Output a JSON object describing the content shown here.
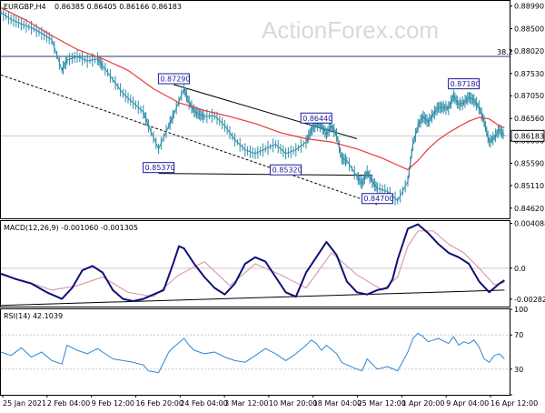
{
  "header": {
    "symbol": "EURGBP,H4",
    "ohlc": "0.86385 0.86405 0.86166 0.86183"
  },
  "watermark": "ActionForex.com",
  "colors": {
    "price": "#2c8ca8",
    "ema": "#e8393b",
    "macd": "#101075",
    "signal": "#d99fb3",
    "rsi": "#2f86d6",
    "trend": "#000000",
    "label": "#1b1b9a",
    "grid": "#c8c8c8"
  },
  "chart_data": [
    {
      "type": "line",
      "panel": "price",
      "title": "EURGBP,H4",
      "ylim": [
        0.844,
        0.891
      ],
      "x_range": [
        0,
        100
      ],
      "y_ticks": [
        "0.88990",
        "0.88500",
        "0.88020",
        "0.87530",
        "0.87050",
        "0.86560",
        "0.86080",
        "0.85590",
        "0.85110",
        "0.84620"
      ],
      "y_tick_values": [
        0.8899,
        0.885,
        0.8802,
        0.8753,
        0.8705,
        0.8656,
        0.8608,
        0.8559,
        0.8511,
        0.8462
      ],
      "current_price": "0.86183",
      "current_price_value": 0.86183,
      "fib_label": "38.2",
      "fib_value": 0.879,
      "series": [
        {
          "name": "price",
          "x": [
            0,
            2,
            4,
            6,
            8,
            10,
            12,
            13,
            15,
            17,
            19,
            20,
            22,
            24,
            26,
            28,
            29,
            31,
            33,
            34,
            36,
            37,
            38,
            39,
            40,
            42,
            44,
            46,
            48,
            50,
            52,
            54,
            56,
            58,
            60,
            61,
            62,
            63,
            64,
            65,
            66,
            67,
            68,
            70,
            71,
            72,
            73,
            74,
            76,
            78,
            80,
            81,
            82,
            83,
            84,
            85,
            86,
            87,
            88,
            89,
            90,
            91,
            92,
            93,
            94,
            95,
            96,
            97,
            98,
            99
          ],
          "values": [
            0.8885,
            0.887,
            0.886,
            0.8852,
            0.884,
            0.8826,
            0.876,
            0.8782,
            0.879,
            0.878,
            0.8785,
            0.877,
            0.874,
            0.871,
            0.869,
            0.867,
            0.864,
            0.859,
            0.864,
            0.8665,
            0.872,
            0.869,
            0.8672,
            0.8665,
            0.866,
            0.8662,
            0.864,
            0.861,
            0.8588,
            0.858,
            0.859,
            0.86,
            0.858,
            0.8588,
            0.8605,
            0.863,
            0.8644,
            0.864,
            0.8622,
            0.864,
            0.862,
            0.857,
            0.8565,
            0.853,
            0.8515,
            0.854,
            0.852,
            0.8505,
            0.8498,
            0.8478,
            0.852,
            0.86,
            0.864,
            0.866,
            0.8648,
            0.8665,
            0.868,
            0.868,
            0.8678,
            0.8705,
            0.8686,
            0.869,
            0.8702,
            0.8695,
            0.868,
            0.865,
            0.8605,
            0.8615,
            0.8632,
            0.8619
          ]
        },
        {
          "name": "ema",
          "x": [
            0,
            5,
            10,
            15,
            20,
            25,
            30,
            35,
            40,
            45,
            50,
            55,
            60,
            65,
            70,
            75,
            78,
            80,
            82,
            84,
            86,
            88,
            90,
            92,
            94,
            96,
            98,
            99
          ],
          "values": [
            0.8895,
            0.8868,
            0.8835,
            0.8805,
            0.8785,
            0.876,
            0.872,
            0.869,
            0.8673,
            0.866,
            0.8645,
            0.8625,
            0.8612,
            0.8605,
            0.859,
            0.857,
            0.8555,
            0.8545,
            0.8565,
            0.859,
            0.861,
            0.8625,
            0.8638,
            0.865,
            0.8658,
            0.8655,
            0.864,
            0.8636
          ]
        }
      ],
      "trendlines": [
        {
          "x": [
            0,
            74
          ],
          "values": [
            0.875,
            0.847
          ]
        },
        {
          "x": [
            34,
            70
          ],
          "values": [
            0.8729,
            0.8612
          ]
        },
        {
          "x": [
            31,
            73
          ],
          "values": [
            0.8537,
            0.8533
          ]
        }
      ],
      "annotations": [
        {
          "text": "0.87290",
          "x": 34,
          "value": 0.8729
        },
        {
          "text": "0.85370",
          "x": 31,
          "value": 0.8537
        },
        {
          "text": "0.85320",
          "x": 56,
          "value": 0.8532
        },
        {
          "text": "0.86440",
          "x": 62,
          "value": 0.8644
        },
        {
          "text": "0.84700",
          "x": 74,
          "value": 0.847
        },
        {
          "text": "0.87180",
          "x": 91,
          "value": 0.8718
        }
      ]
    },
    {
      "type": "line",
      "panel": "macd",
      "title": "MACD(12,26,9) -0.001060 -0.001305",
      "ylim": [
        -0.0035,
        0.0043
      ],
      "x_range": [
        0,
        100
      ],
      "y_ticks": [
        "0.004088",
        "0.0",
        "-0.00282"
      ],
      "y_tick_values": [
        0.004088,
        0.0,
        -0.00282
      ],
      "zero_label": "0.0",
      "series": [
        {
          "name": "macd",
          "x": [
            0,
            3,
            6,
            9,
            12,
            14,
            16,
            18,
            20,
            22,
            24,
            26,
            28,
            30,
            32,
            34,
            35,
            36,
            38,
            40,
            42,
            44,
            46,
            48,
            50,
            52,
            54,
            56,
            58,
            60,
            62,
            64,
            66,
            68,
            70,
            72,
            74,
            76,
            77,
            78,
            80,
            82,
            84,
            86,
            88,
            90,
            92,
            94,
            96,
            98,
            99
          ],
          "values": [
            -0.0005,
            -0.001,
            -0.0014,
            -0.0022,
            -0.0028,
            -0.0018,
            -0.0002,
            0.0002,
            -0.0004,
            -0.002,
            -0.0028,
            -0.003,
            -0.0028,
            -0.0024,
            -0.002,
            0.0006,
            0.002,
            0.0018,
            0.0004,
            -0.0008,
            -0.0018,
            -0.0024,
            -0.0014,
            0.0004,
            0.001,
            0.0006,
            -0.0008,
            -0.0022,
            -0.0026,
            -0.0004,
            0.001,
            0.0024,
            0.0012,
            -0.0012,
            -0.0022,
            -0.0024,
            -0.002,
            -0.0018,
            -0.001,
            0.0008,
            0.0036,
            0.004,
            0.0032,
            0.0022,
            0.0014,
            0.001,
            0.0004,
            -0.0012,
            -0.0022,
            -0.0014,
            -0.0011
          ]
        },
        {
          "name": "signal",
          "x": [
            0,
            5,
            10,
            15,
            20,
            25,
            30,
            35,
            40,
            45,
            50,
            55,
            60,
            65,
            70,
            75,
            78,
            80,
            82,
            85,
            88,
            91,
            94,
            97,
            99
          ],
          "values": [
            -0.0006,
            -0.0012,
            -0.002,
            -0.0016,
            -0.0008,
            -0.0022,
            -0.0026,
            -0.0006,
            0.0006,
            -0.0016,
            0.0004,
            -0.0006,
            -0.0018,
            0.0014,
            -0.0006,
            -0.002,
            -0.0008,
            0.002,
            0.0034,
            0.0034,
            0.0022,
            0.0014,
            0.0,
            -0.0015,
            -0.0013
          ]
        }
      ],
      "trendlines": [
        {
          "x": [
            0,
            99
          ],
          "values": [
            -0.0034,
            -0.002
          ]
        }
      ]
    },
    {
      "type": "line",
      "panel": "rsi",
      "title": "RSI(14) 42.1039",
      "ylim": [
        0,
        100
      ],
      "x_range": [
        0,
        100
      ],
      "y_ticks": [
        "100",
        "70",
        "30",
        "0"
      ],
      "y_tick_values": [
        100,
        70,
        30,
        0
      ],
      "series": [
        {
          "name": "rsi",
          "x": [
            0,
            2,
            4,
            6,
            8,
            10,
            12,
            13,
            15,
            17,
            19,
            20,
            22,
            24,
            26,
            28,
            29,
            31,
            33,
            34,
            36,
            37,
            38,
            40,
            42,
            44,
            46,
            48,
            50,
            52,
            54,
            56,
            58,
            60,
            61,
            62,
            63,
            64,
            66,
            67,
            68,
            70,
            71,
            72,
            74,
            76,
            78,
            80,
            81,
            82,
            83,
            84,
            86,
            88,
            89,
            90,
            91,
            92,
            93,
            94,
            95,
            96,
            97,
            98,
            99
          ],
          "values": [
            50,
            46,
            55,
            44,
            50,
            40,
            36,
            58,
            52,
            48,
            54,
            50,
            42,
            40,
            38,
            35,
            28,
            26,
            50,
            56,
            66,
            58,
            52,
            48,
            50,
            44,
            40,
            38,
            46,
            54,
            48,
            40,
            48,
            58,
            64,
            60,
            52,
            58,
            48,
            38,
            35,
            30,
            28,
            42,
            30,
            33,
            28,
            50,
            66,
            72,
            68,
            62,
            66,
            60,
            68,
            58,
            62,
            60,
            64,
            56,
            42,
            38,
            46,
            48,
            42
          ]
        }
      ]
    }
  ],
  "x_labels": [
    "25 Jan 2021",
    "2 Feb 04:00",
    "9 Feb 12:00",
    "16 Feb 20:00",
    "24 Feb 04:00",
    "3 Mar 12:00",
    "10 Mar 20:00",
    "18 Mar 04:00",
    "25 Mar 12:00",
    "1 Apr 20:00",
    "9 Apr 04:00",
    "16 Apr 12:00"
  ]
}
